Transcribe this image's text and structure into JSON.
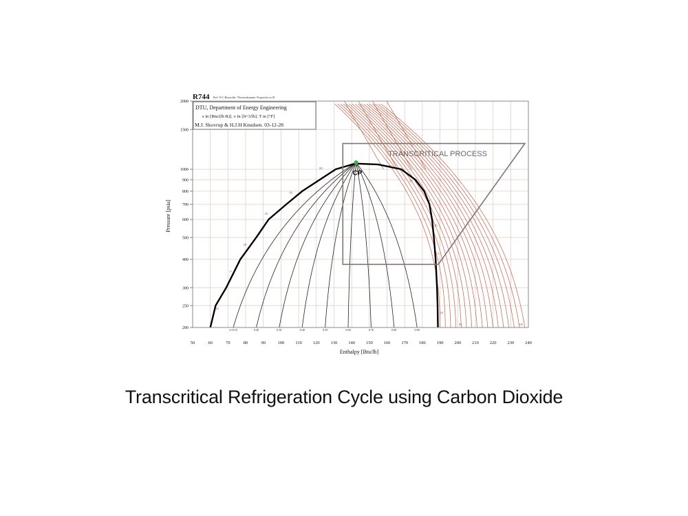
{
  "slide": {
    "caption": "Transcritical Refrigeration Cycle using Carbon Dioxide"
  },
  "chart_data": {
    "type": "line",
    "title": "R744",
    "subtitle": "Ref: W.C.Reynolds: Thermodynamic Properties in SI",
    "info_lines": [
      "DTU, Department of Energy Engineering",
      "s in [Btu/(lb R)]. v in [ft^3/lb]. T in [°F]",
      "M.J. Skovrup & H.J.H Knudsen. 03-12-28"
    ],
    "xlabel": "Enthalpy [Btu/lb]",
    "ylabel": "Pressure [psia]",
    "xlim": [
      50,
      240
    ],
    "ylim": [
      200,
      2000
    ],
    "y_scale": "log",
    "x_ticks": [
      50,
      60,
      70,
      80,
      90,
      100,
      110,
      120,
      130,
      140,
      150,
      160,
      170,
      180,
      190,
      200,
      210,
      220,
      230,
      240
    ],
    "y_ticks": [
      200,
      250,
      300,
      400,
      500,
      600,
      700,
      800,
      900,
      1000,
      1500,
      2000
    ],
    "grid": true,
    "colors": {
      "dome": "#000000",
      "quality_lines": "#222222",
      "isotherms": "#c0604a",
      "grid": "#d3b2aa",
      "process_box": "#777777",
      "critical_point": "#44aa44"
    },
    "saturation_dome": {
      "liquid": [
        [
          60,
          200
        ],
        [
          63,
          250
        ],
        [
          69,
          300
        ],
        [
          77,
          400
        ],
        [
          86,
          500
        ],
        [
          93,
          600
        ],
        [
          103,
          700
        ],
        [
          112,
          800
        ],
        [
          122,
          900
        ],
        [
          131,
          1000
        ],
        [
          142,
          1060
        ]
      ],
      "critical_point": {
        "label": "CP",
        "h": 142.5,
        "p": 1070
      },
      "vapor": [
        [
          142,
          1060
        ],
        [
          155,
          1050
        ],
        [
          168,
          1000
        ],
        [
          176,
          900
        ],
        [
          181,
          800
        ],
        [
          184,
          700
        ],
        [
          185.5,
          600
        ],
        [
          186.5,
          500
        ],
        [
          187.5,
          400
        ],
        [
          188.3,
          300
        ],
        [
          188.6,
          250
        ],
        [
          188.8,
          200
        ]
      ]
    },
    "quality_labels": [
      "x=0.10",
      "0.20",
      "0.30",
      "0.40",
      "0.50",
      "0.60",
      "0.70",
      "0.80",
      "0.90"
    ],
    "quality_lines": [
      {
        "x": 0.1,
        "h_bottom": 73
      },
      {
        "x": 0.2,
        "h_bottom": 86
      },
      {
        "x": 0.3,
        "h_bottom": 99
      },
      {
        "x": 0.4,
        "h_bottom": 112
      },
      {
        "x": 0.5,
        "h_bottom": 125
      },
      {
        "x": 0.6,
        "h_bottom": 138
      },
      {
        "x": 0.7,
        "h_bottom": 151
      },
      {
        "x": 0.8,
        "h_bottom": 164
      },
      {
        "x": 0.9,
        "h_bottom": 177
      }
    ],
    "temperature_labels": [
      "-20",
      "0",
      "20",
      "40",
      "60",
      "80",
      "80",
      "60",
      "40",
      "20",
      "0",
      "-20",
      "80",
      "100"
    ],
    "isotherm_bottom_h": [
      190,
      193,
      196,
      199,
      202,
      205,
      208,
      211,
      214,
      217,
      220,
      223,
      226,
      229,
      232,
      235,
      238
    ],
    "annotation": {
      "label": "TRANSCRITICAL PROCESS",
      "box": [
        [
          135,
          380
        ],
        [
          189,
          380
        ],
        [
          238,
          1300
        ],
        [
          135,
          1300
        ]
      ]
    }
  }
}
